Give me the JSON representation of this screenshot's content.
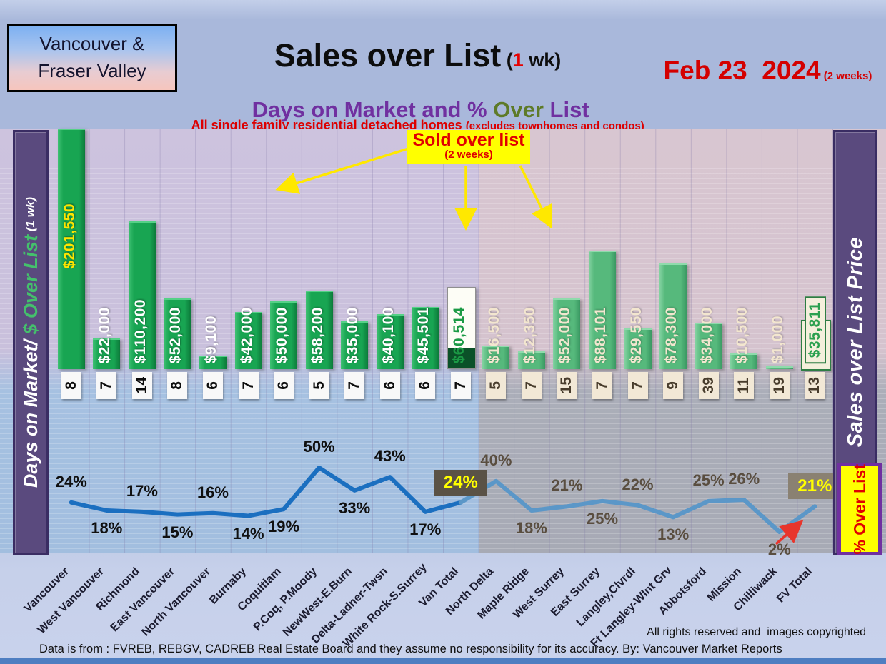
{
  "header": {
    "region_box_line1": "Vancouver &",
    "region_box_line2": "Fraser Valley",
    "title": "Sales over List",
    "title_paren_pre": " (",
    "title_paren_num": "1",
    "title_paren_post": " wk)",
    "subtitle_pre": "Days on Market and % ",
    "subtitle_over": "Over",
    "subtitle_post": " List",
    "note": "All single family residential detached homes ",
    "note_paren": "(excludes townhomes and condos)",
    "date": "Feb 23  2024",
    "date_note": " (2 weeks)"
  },
  "left_axis": {
    "part1": "Days on Market/",
    "part2": " $ Over List",
    "part3": " (1 wk)"
  },
  "right_axis": {
    "title": "Sales over List Price",
    "pct_label": "% Over List"
  },
  "callout": {
    "title": "Sold over list",
    "subtitle": "(2 weeks)"
  },
  "footer": {
    "rights": "All rights reserved and  images copyrighted",
    "source": "Data is from : FVREB, REBGV, CADREB Real Estate Board and they assume no responsibility for its accuracy. By: Vancouver Market Reports"
  },
  "chart_data": {
    "type": "combo: bar ($ sold over list) + line (% over list) + data row (days on market)",
    "title": "Sales over List (1 wk) — Days on Market and % Over List",
    "categories": [
      "Vancouver",
      "West Vancouver",
      "Richmond",
      "East Vancouver",
      "North Vancouver",
      "Burnaby",
      "Coquitlam",
      "P.Coq, P.Moody",
      "NewWest-E.Burn",
      "Delta-Ladner-Twsn",
      "White Rock-S.Surrey",
      "Van Total",
      "North Delta",
      "Maple Ridge",
      "West Surrey",
      "East Surrey",
      "Langley,Clvrdl",
      "Ft Langley-WInt Grv",
      "Abbotsford",
      "Mission",
      "Chilliwack",
      "FV Total"
    ],
    "series": [
      {
        "name": "Sold over list $ (2 weeks)",
        "type": "bar",
        "values": [
          201550,
          22000,
          110200,
          52000,
          9100,
          42000,
          50000,
          58200,
          35000,
          40100,
          45501,
          60514,
          16500,
          12350,
          52000,
          88101,
          29550,
          78300,
          34000,
          10500,
          1000,
          35811
        ],
        "labels": [
          "$201,550",
          "$22,000",
          "$110,200",
          "$52,000",
          "$9,100",
          "$42,000",
          "$50,000",
          "$58,200",
          "$35,000",
          "$40,100",
          "$45,501",
          "$60,514",
          "$16,500",
          "$12,350",
          "$52,000",
          "$88,101",
          "$29,550",
          "$78,300",
          "$34,000",
          "$10,500",
          "$1,000",
          "$35,811"
        ]
      },
      {
        "name": "Days on Market (1 wk)",
        "type": "row",
        "values": [
          8,
          7,
          14,
          8,
          6,
          7,
          6,
          5,
          7,
          6,
          6,
          7,
          5,
          7,
          15,
          7,
          7,
          9,
          39,
          11,
          19,
          13
        ]
      },
      {
        "name": "% Over List",
        "type": "line",
        "values": [
          24,
          18,
          17,
          15,
          16,
          14,
          19,
          50,
          33,
          43,
          17,
          24,
          40,
          18,
          21,
          25,
          22,
          13,
          25,
          26,
          2,
          21
        ],
        "labels": [
          "24%",
          "18%",
          "17%",
          "15%",
          "16%",
          "14%",
          "19%",
          "50%",
          "33%",
          "43%",
          "17%",
          "24%",
          "40%",
          "18%",
          "21%",
          "25%",
          "22%",
          "13%",
          "25%",
          "26%",
          "2%",
          "21%"
        ]
      }
    ],
    "layout": {
      "split_index": 12,
      "total_indices": [
        11,
        21
      ],
      "bar_label_raised_index": 0,
      "pct_label_pos": [
        "above",
        "below",
        "above",
        "below",
        "above",
        "below",
        "below",
        "above",
        "below",
        "above",
        "below",
        "box",
        "above",
        "below",
        "above",
        "below",
        "above",
        "below",
        "above",
        "above",
        "below",
        "box"
      ],
      "legend": "none",
      "grid": "vertical category lines + horizontal pinstripes",
      "colors": {
        "bar_van": "#18a552",
        "bar_fv": "#56b97c",
        "bar_van_total_fill": "#fdfdf6",
        "bar_van_total_base": "#0a5128",
        "bar_fv_total_fill": "#f4efdc",
        "line_van": "#1b6fc0",
        "line_fv": "#5b97c8",
        "pct_box_van_bg": "#5a5246",
        "pct_box_fv_bg": "#8a8172",
        "pct_box_text": "#ffff00",
        "sidebar_purple": "#5a4a7e",
        "callout_bg": "#ffff00",
        "callout_text": "#e00000",
        "title_purple": "#7030a0",
        "title_olive": "#5e7a28",
        "accent_red": "#d40000"
      }
    }
  }
}
